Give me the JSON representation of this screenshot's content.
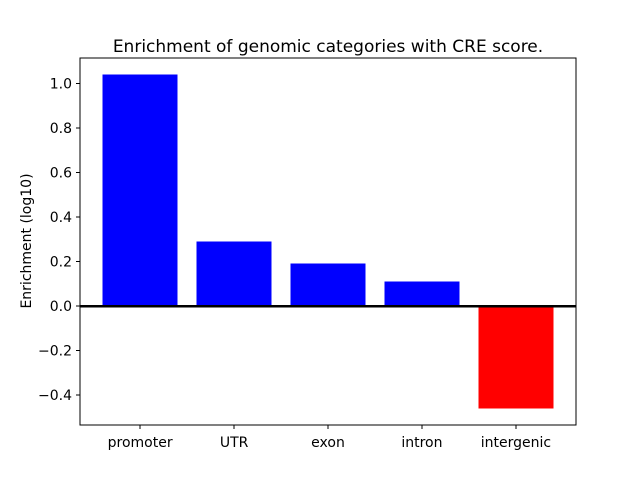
{
  "figure": {
    "background": "#ffffff"
  },
  "chart_data": {
    "type": "bar",
    "title": "Enrichment of genomic categories with CRE score.",
    "xlabel": "",
    "ylabel": "Enrichment (log10)",
    "categories": [
      "promoter",
      "UTR",
      "exon",
      "intron",
      "intergenic"
    ],
    "values": [
      1.04,
      0.29,
      0.19,
      0.11,
      -0.46
    ],
    "bar_colors": [
      "#0000ff",
      "#0000ff",
      "#0000ff",
      "#0000ff",
      "#ff0000"
    ],
    "positive_color": "#0000ff",
    "negative_color": "#ff0000",
    "bar_width": 0.8,
    "xlim": [
      -0.64,
      4.64
    ],
    "ylim": [
      -0.535,
      1.115
    ],
    "yticks": [
      -0.4,
      -0.2,
      0.0,
      0.2,
      0.4,
      0.6,
      0.8,
      1.0
    ],
    "ytick_labels": [
      "−0.4",
      "−0.2",
      "0.0",
      "0.2",
      "0.4",
      "0.6",
      "0.8",
      "1.0"
    ],
    "grid": false,
    "legend": null,
    "zero_line": true,
    "axis_color": "#000000"
  }
}
